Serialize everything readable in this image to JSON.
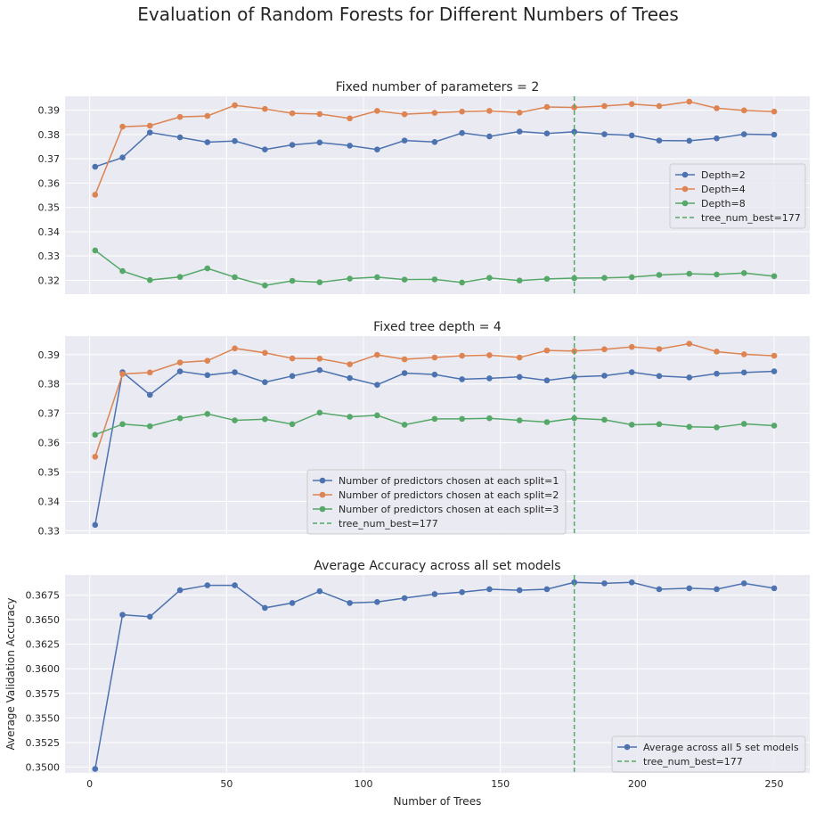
{
  "figure": {
    "title": "Evaluation of Random Forests for Different Numbers of Trees"
  },
  "colors": {
    "blue": "#4c72b0",
    "orange": "#dd8452",
    "green": "#55a868",
    "axes_bg": "#eaeaf2",
    "grid": "#ffffff"
  },
  "chart_data": [
    {
      "type": "line",
      "title": "Fixed number of parameters = 2",
      "xlabel": "",
      "ylabel": "",
      "x": [
        2,
        12,
        22,
        33,
        43,
        53,
        64,
        74,
        84,
        95,
        105,
        115,
        126,
        136,
        146,
        157,
        167,
        177,
        188,
        198,
        208,
        219,
        229,
        239,
        250
      ],
      "xlim": [
        -9,
        263
      ],
      "ylim": [
        0.3143,
        0.3957
      ],
      "yticks": [
        "0.32",
        "0.33",
        "0.34",
        "0.35",
        "0.36",
        "0.37",
        "0.38",
        "0.39"
      ],
      "xticks": [],
      "legend_position": "center-right",
      "series": [
        {
          "name": "Depth=2",
          "color": "#4c72b0",
          "values": [
            0.3667,
            0.3705,
            0.3808,
            0.3788,
            0.3768,
            0.3773,
            0.3738,
            0.3757,
            0.3767,
            0.3754,
            0.3738,
            0.3775,
            0.3769,
            0.3806,
            0.3792,
            0.3812,
            0.3804,
            0.3811,
            0.3801,
            0.3796,
            0.3775,
            0.3774,
            0.3784,
            0.3801,
            0.3799
          ]
        },
        {
          "name": "Depth=4",
          "color": "#dd8452",
          "values": [
            0.3552,
            0.3832,
            0.3836,
            0.3872,
            0.3876,
            0.392,
            0.3905,
            0.3887,
            0.3884,
            0.3866,
            0.3897,
            0.3883,
            0.3889,
            0.3894,
            0.3897,
            0.389,
            0.3913,
            0.3911,
            0.3917,
            0.3925,
            0.3917,
            0.3935,
            0.3908,
            0.3899,
            0.3894
          ]
        },
        {
          "name": "Depth=8",
          "color": "#55a868",
          "values": [
            0.3323,
            0.3238,
            0.3201,
            0.3214,
            0.3249,
            0.3213,
            0.3179,
            0.3198,
            0.3192,
            0.3207,
            0.3213,
            0.3203,
            0.3204,
            0.3191,
            0.321,
            0.3199,
            0.3206,
            0.3209,
            0.321,
            0.3213,
            0.3222,
            0.3227,
            0.3224,
            0.323,
            0.3217
          ]
        }
      ],
      "vline": {
        "x": 177,
        "name": "tree_num_best=177",
        "color": "#55a868"
      }
    },
    {
      "type": "line",
      "title": "Fixed tree depth = 4",
      "xlabel": "",
      "ylabel": "",
      "x": [
        2,
        12,
        22,
        33,
        43,
        53,
        64,
        74,
        84,
        95,
        105,
        115,
        126,
        136,
        146,
        157,
        167,
        177,
        188,
        198,
        208,
        219,
        229,
        239,
        250
      ],
      "xlim": [
        -9,
        263
      ],
      "ylim": [
        0.3289,
        0.3963
      ],
      "yticks": [
        "0.33",
        "0.34",
        "0.35",
        "0.36",
        "0.37",
        "0.38",
        "0.39"
      ],
      "xticks": [],
      "legend_position": "lower-center",
      "series": [
        {
          "name": "Number of predictors chosen at each split=1",
          "color": "#4c72b0",
          "values": [
            0.332,
            0.384,
            0.3763,
            0.3843,
            0.383,
            0.384,
            0.3806,
            0.3827,
            0.3847,
            0.382,
            0.3797,
            0.3837,
            0.3832,
            0.3816,
            0.3819,
            0.3824,
            0.3812,
            0.3824,
            0.3828,
            0.384,
            0.3827,
            0.3822,
            0.3835,
            0.3839,
            0.3843
          ]
        },
        {
          "name": "Number of predictors chosen at each split=2",
          "color": "#dd8452",
          "values": [
            0.3552,
            0.3834,
            0.3839,
            0.3873,
            0.3879,
            0.3921,
            0.3906,
            0.3887,
            0.3886,
            0.3867,
            0.3899,
            0.3884,
            0.389,
            0.3896,
            0.3898,
            0.389,
            0.3914,
            0.3912,
            0.3918,
            0.3926,
            0.3919,
            0.3937,
            0.391,
            0.3901,
            0.3896
          ]
        },
        {
          "name": "Number of predictors chosen at each split=3",
          "color": "#55a868",
          "values": [
            0.3627,
            0.3663,
            0.3656,
            0.3683,
            0.3698,
            0.3676,
            0.368,
            0.3663,
            0.3702,
            0.3688,
            0.3693,
            0.3661,
            0.3681,
            0.3681,
            0.3683,
            0.3676,
            0.367,
            0.3683,
            0.3678,
            0.3661,
            0.3663,
            0.3654,
            0.3652,
            0.3664,
            0.3658
          ]
        }
      ],
      "vline": {
        "x": 177,
        "name": "tree_num_best=177",
        "color": "#55a868"
      }
    },
    {
      "type": "line",
      "title": "Average Accuracy across all set models",
      "xlabel": "Number of Trees",
      "ylabel": "Average Validation Accuracy",
      "x": [
        2,
        12,
        22,
        33,
        43,
        53,
        64,
        74,
        84,
        95,
        105,
        115,
        126,
        136,
        146,
        157,
        167,
        177,
        188,
        198,
        208,
        219,
        229,
        239,
        250
      ],
      "xlim": [
        -9,
        263
      ],
      "ylim": [
        0.3494,
        0.36955
      ],
      "yticks": [
        "0.3500",
        "0.3525",
        "0.3550",
        "0.3575",
        "0.3600",
        "0.3625",
        "0.3650",
        "0.3675"
      ],
      "xticks": [
        "0",
        "50",
        "100",
        "150",
        "200",
        "250"
      ],
      "legend_position": "lower-right",
      "series": [
        {
          "name": "Average across all 5 set models",
          "color": "#4c72b0",
          "values": [
            0.3498,
            0.3655,
            0.3653,
            0.368,
            0.3685,
            0.3685,
            0.3662,
            0.3667,
            0.3679,
            0.3667,
            0.3668,
            0.3672,
            0.3676,
            0.3678,
            0.3681,
            0.368,
            0.3681,
            0.3688,
            0.3687,
            0.3688,
            0.3681,
            0.3682,
            0.3681,
            0.3687,
            0.3682
          ]
        }
      ],
      "vline": {
        "x": 177,
        "name": "tree_num_best=177",
        "color": "#55a868"
      }
    }
  ]
}
